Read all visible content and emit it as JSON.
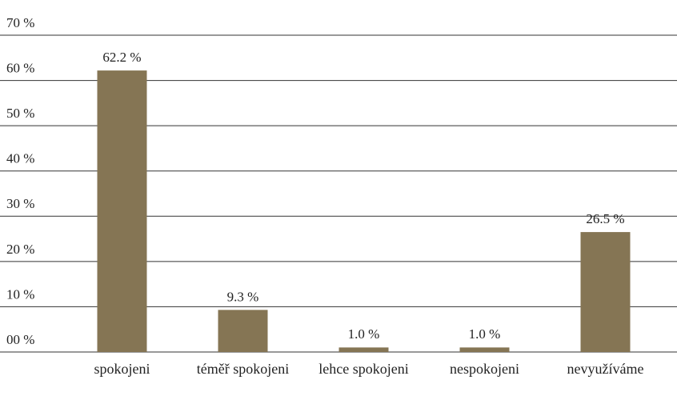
{
  "chart_data": {
    "type": "bar",
    "categories": [
      "spokojeni",
      "téměř spokojeni",
      "lehce spokojeni",
      "nespokojeni",
      "nevyužíváme"
    ],
    "values": [
      62.2,
      9.3,
      1.0,
      1.0,
      26.5
    ],
    "value_labels": [
      "62.2 %",
      "9.3 %",
      "1.0 %",
      "1.0 %",
      "26.5 %"
    ],
    "color": "#857554",
    "ylim": [
      0,
      70
    ],
    "yticks": [
      {
        "value": 0,
        "label": "00 %"
      },
      {
        "value": 10,
        "label": "10 %"
      },
      {
        "value": 20,
        "label": "20 %"
      },
      {
        "value": 30,
        "label": "30 %"
      },
      {
        "value": 40,
        "label": "40 %"
      },
      {
        "value": 50,
        "label": "50 %"
      },
      {
        "value": 60,
        "label": "60 %"
      },
      {
        "value": 70,
        "label": "70 %"
      }
    ],
    "grid": true
  }
}
